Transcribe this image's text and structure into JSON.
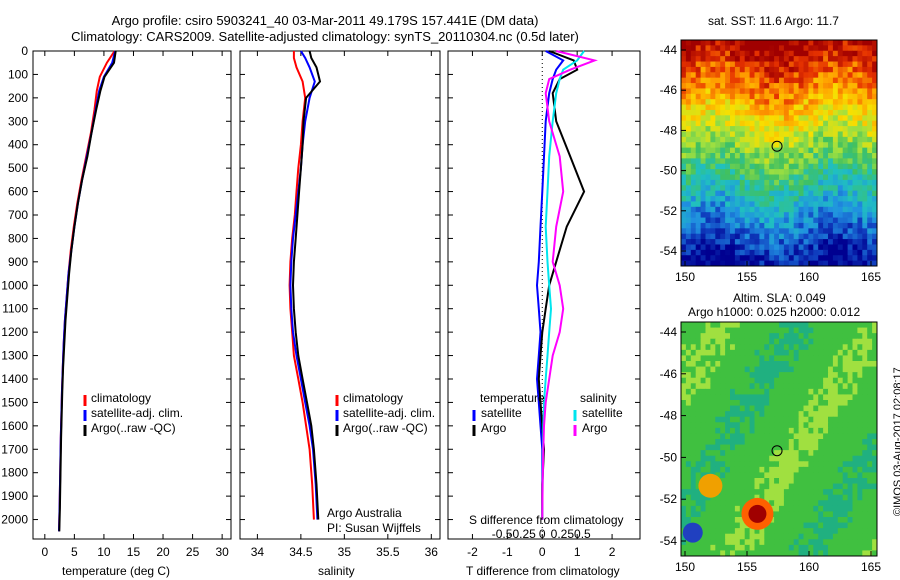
{
  "header": {
    "title_line1": "Argo profile: csiro 5903241_40 03-Mar-2011 49.179S 157.441E (DM data)",
    "title_line2": "Climatology: CARS2009. Satellite-adjusted climatology: synTS_20110304.nc (0.5d later)"
  },
  "panel1": {
    "xlabel": "temperature (deg C)",
    "xticks": [
      "0",
      "5",
      "10",
      "15",
      "20",
      "25",
      "30"
    ],
    "legend": [
      "climatology",
      "satellite-adj. clim.",
      "Argo(..raw -QC)"
    ]
  },
  "panel2": {
    "xlabel": "salinity",
    "xticks": [
      "34",
      "34.5",
      "35",
      "35.5",
      "36"
    ],
    "legend": [
      "climatology",
      "satellite-adj. clim.",
      "Argo(..raw -QC)"
    ],
    "credit_line1": "Argo Australia",
    "credit_line2": "PI: Susan Wijffels"
  },
  "panel3": {
    "xlabel": "T difference from climatology",
    "top_label": "S difference from climatology",
    "t_ticks": [
      "-2",
      "-1",
      "0",
      "1",
      "2"
    ],
    "s_ticks": [
      "-0.5",
      "-0.25",
      "0",
      "0.25",
      "0.5"
    ],
    "legend_temp_title": "temperature",
    "legend_sal_title": "salinity",
    "legend_temp": [
      "satellite",
      "Argo"
    ],
    "legend_sal": [
      "satellite",
      "Argo"
    ]
  },
  "depth_ticks": [
    "0",
    "100",
    "200",
    "300",
    "400",
    "500",
    "600",
    "700",
    "800",
    "900",
    "1000",
    "1100",
    "1200",
    "1300",
    "1400",
    "1500",
    "1600",
    "1700",
    "1800",
    "1900",
    "2000"
  ],
  "map1": {
    "title": "sat. SST: 11.6 Argo: 11.7",
    "yticks": [
      "-44",
      "-46",
      "-48",
      "-50",
      "-52",
      "-54"
    ],
    "xticks": [
      "150",
      "155",
      "160",
      "165"
    ]
  },
  "map2": {
    "title1": "Altim. SLA: 0.049",
    "title2": "Argo h1000: 0.025 h2000: 0.012",
    "yticks": [
      "-44",
      "-46",
      "-48",
      "-50",
      "-52",
      "-54"
    ],
    "xticks": [
      "150",
      "155",
      "160",
      "165"
    ]
  },
  "footer": {
    "stamp": "©IMOS 03-Aug-2017 02:08:17"
  },
  "colors": {
    "climatology": "#ff0000",
    "satellite": "#0000ff",
    "argo": "#000000",
    "sal_satellite": "#00e5ee",
    "sal_argo": "#ff00ff"
  },
  "chart_data": [
    {
      "type": "line",
      "xlabel": "temperature (deg C)",
      "ylabel": "",
      "xlim": [
        -2,
        31.5
      ],
      "ylim": [
        2080,
        0
      ],
      "series": [
        {
          "name": "climatology",
          "x": [
            11.8,
            10.5,
            9.3,
            8.8,
            8.4,
            7.8,
            7.0,
            6.2,
            5.5,
            4.9,
            4.4,
            4.0,
            3.7,
            3.4,
            3.2,
            3.05,
            2.9,
            2.8,
            2.7,
            2.6,
            2.5,
            2.4
          ],
          "y": [
            0,
            50,
            110,
            170,
            250,
            350,
            450,
            550,
            650,
            750,
            850,
            950,
            1050,
            1150,
            1250,
            1350,
            1450,
            1550,
            1650,
            1800,
            1950,
            2050
          ]
        },
        {
          "name": "satellite-adj. clim.",
          "x": [
            11.9,
            11.4,
            10.0,
            9.2,
            8.6,
            7.9,
            7.1,
            6.3,
            5.6,
            5.0,
            4.5,
            4.0,
            3.7,
            3.4,
            3.2,
            3.05,
            2.9,
            2.8,
            2.7,
            2.6,
            2.5,
            2.4
          ],
          "y": [
            0,
            50,
            110,
            170,
            250,
            350,
            450,
            550,
            650,
            750,
            850,
            950,
            1050,
            1150,
            1250,
            1350,
            1450,
            1550,
            1650,
            1800,
            1950,
            2050
          ]
        },
        {
          "name": "Argo(..raw -QC)",
          "x": [
            12.0,
            11.7,
            10.1,
            9.4,
            8.7,
            7.9,
            7.2,
            6.3,
            5.6,
            5.0,
            4.5,
            4.1,
            3.8,
            3.5,
            3.3,
            3.1,
            2.95,
            2.85,
            2.75,
            2.65,
            2.55,
            2.45
          ],
          "y": [
            0,
            50,
            110,
            170,
            250,
            350,
            450,
            550,
            650,
            750,
            850,
            950,
            1050,
            1150,
            1250,
            1350,
            1450,
            1550,
            1650,
            1800,
            1950,
            2050
          ]
        }
      ]
    },
    {
      "type": "line",
      "xlabel": "salinity",
      "ylabel": "",
      "xlim": [
        33.8,
        36.1
      ],
      "ylim": [
        2080,
        0
      ],
      "series": [
        {
          "name": "climatology",
          "x": [
            34.42,
            34.42,
            34.45,
            34.52,
            34.55,
            34.52,
            34.5,
            34.47,
            34.45,
            34.43,
            34.4,
            34.38,
            34.37,
            34.38,
            34.4,
            34.42,
            34.47,
            34.52,
            34.56,
            34.6,
            34.63,
            34.65
          ],
          "y": [
            0,
            30,
            70,
            130,
            200,
            300,
            400,
            500,
            600,
            700,
            800,
            900,
            1000,
            1100,
            1200,
            1300,
            1400,
            1500,
            1600,
            1700,
            1850,
            2000
          ]
        },
        {
          "name": "satellite-adj. clim.",
          "x": [
            34.5,
            34.55,
            34.6,
            34.66,
            34.6,
            34.55,
            34.52,
            34.5,
            34.47,
            34.44,
            34.41,
            34.39,
            34.38,
            34.39,
            34.41,
            34.45,
            34.5,
            34.55,
            34.6,
            34.64,
            34.67,
            34.69
          ],
          "y": [
            0,
            30,
            70,
            130,
            200,
            300,
            400,
            500,
            600,
            700,
            800,
            900,
            1000,
            1100,
            1200,
            1300,
            1400,
            1500,
            1600,
            1700,
            1850,
            2000
          ]
        },
        {
          "name": "Argo(..raw -QC)",
          "x": [
            34.6,
            34.62,
            34.68,
            34.72,
            34.56,
            34.53,
            34.52,
            34.5,
            34.48,
            34.46,
            34.44,
            34.42,
            34.41,
            34.42,
            34.44,
            34.47,
            34.52,
            34.57,
            34.62,
            34.65,
            34.68,
            34.7
          ],
          "y": [
            0,
            30,
            70,
            130,
            200,
            300,
            400,
            500,
            600,
            700,
            800,
            900,
            1000,
            1100,
            1200,
            1300,
            1400,
            1500,
            1600,
            1700,
            1850,
            2000
          ]
        }
      ]
    },
    {
      "type": "line",
      "xlabel": "T difference from climatology",
      "ylabel": "",
      "xlim": [
        -2.7,
        2.8
      ],
      "ylim": [
        2080,
        0
      ],
      "series": [
        {
          "name": "temperature satellite",
          "x": [
            0.1,
            0.6,
            0.4,
            0.3,
            0.2,
            0.1,
            0.05,
            0.0,
            -0.05,
            -0.1,
            -0.15,
            -0.1,
            -0.05,
            -0.1,
            -0.15,
            -0.1,
            -0.05,
            0.0,
            0.0,
            0.0
          ],
          "y": [
            0,
            40,
            80,
            120,
            180,
            300,
            450,
            600,
            750,
            900,
            1000,
            1100,
            1200,
            1300,
            1400,
            1500,
            1600,
            1700,
            1850,
            2000
          ]
        },
        {
          "name": "temperature Argo",
          "x": [
            0.2,
            0.9,
            1.0,
            0.5,
            0.3,
            0.4,
            0.8,
            1.2,
            0.7,
            0.4,
            0.2,
            0.1,
            0.0,
            -0.05,
            -0.1,
            -0.05,
            0.0,
            0.05,
            0.0,
            0.0
          ],
          "y": [
            0,
            40,
            80,
            120,
            180,
            300,
            450,
            600,
            750,
            900,
            1000,
            1100,
            1200,
            1300,
            1400,
            1500,
            1600,
            1700,
            1850,
            2000
          ]
        },
        {
          "name": "salinity satellite",
          "x": [
            1.2,
            1.0,
            0.6,
            0.5,
            0.4,
            0.3,
            0.2,
            0.15,
            0.1,
            0.15,
            0.2,
            0.25,
            0.2,
            0.15,
            0.1,
            0.05,
            0.03,
            0.02,
            0.01,
            0.0
          ],
          "y": [
            0,
            40,
            80,
            120,
            180,
            300,
            450,
            600,
            750,
            900,
            1000,
            1100,
            1200,
            1300,
            1400,
            1500,
            1600,
            1700,
            1850,
            2000
          ]
        },
        {
          "name": "salinity Argo",
          "x": [
            0.4,
            1.5,
            0.8,
            0.2,
            0.1,
            0.2,
            0.5,
            0.6,
            0.4,
            0.3,
            0.5,
            0.6,
            0.5,
            0.3,
            0.2,
            0.1,
            0.05,
            0.03,
            0.01,
            0.0
          ],
          "y": [
            0,
            40,
            80,
            120,
            180,
            300,
            450,
            600,
            750,
            900,
            1000,
            1100,
            1200,
            1300,
            1400,
            1500,
            1600,
            1700,
            1850,
            2000
          ]
        }
      ]
    }
  ]
}
